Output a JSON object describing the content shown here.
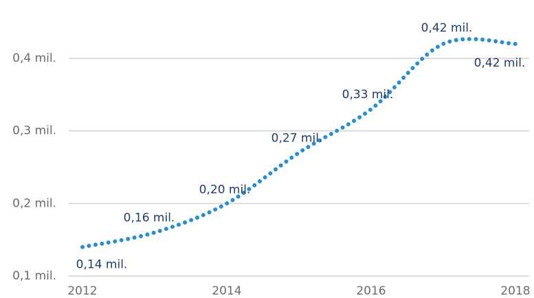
{
  "chart_data": {
    "type": "line",
    "x": [
      2012,
      2013,
      2014,
      2015,
      2016,
      2017,
      2018
    ],
    "series": [
      {
        "color": "#2a8fcc",
        "values": [
          0.14,
          0.16,
          0.2,
          0.27,
          0.33,
          0.42,
          0.42
        ],
        "value_labels": [
          "0,14 mil.",
          "0,16 mil.",
          "0,20 mil.",
          "0,27 mil.",
          "0,33 mil.",
          "0,42 mil.",
          "0,42 mil."
        ]
      }
    ],
    "xlim": [
      2012,
      2018
    ],
    "xticks": [
      2012,
      2014,
      2016,
      2018
    ],
    "ylim": [
      0.1,
      0.4
    ],
    "yticks": [
      {
        "value": 0.1,
        "label": "0,1 mil."
      },
      {
        "value": 0.2,
        "label": "0,2 mil."
      },
      {
        "value": 0.3,
        "label": "0,3 mil."
      },
      {
        "value": 0.4,
        "label": "0,4 mil."
      }
    ],
    "grid": true
  }
}
